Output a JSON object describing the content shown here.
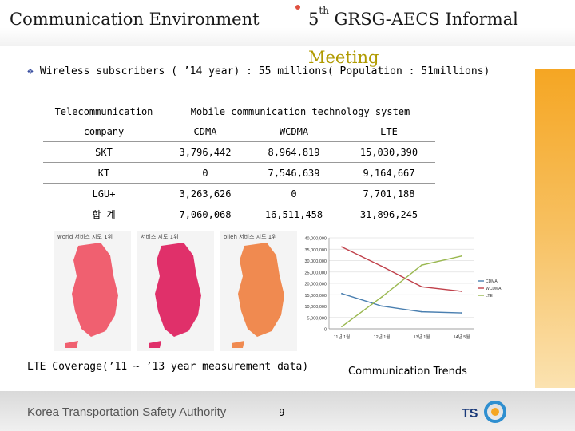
{
  "header": {
    "title_left": "Communication Environment",
    "title_right_prefix": "5",
    "title_right_sup": "th",
    "title_right_suffix": " GRSG-AECS Informal",
    "meeting": "Meeting"
  },
  "bullet": {
    "text": "Wireless subscribers ( ’14 year) :  55 millions( Population : 51millions)"
  },
  "table": {
    "col0_header_top": "Telecommunication",
    "col0_header_bottom": "company",
    "group_header": "Mobile communication technology system",
    "columns": [
      "CDMA",
      "WCDMA",
      "LTE"
    ],
    "rows": [
      {
        "company": "SKT",
        "cdma": "3,796,442",
        "wcdma": "8,964,819",
        "lte": "15,030,390"
      },
      {
        "company": "KT",
        "cdma": "0",
        "wcdma": "7,546,639",
        "lte": "9,164,667"
      },
      {
        "company": "LGU+",
        "cdma": "3,263,626",
        "wcdma": "0",
        "lte": "7,701,188"
      },
      {
        "company": "합 계",
        "cdma": "7,060,068",
        "wcdma": "16,511,458",
        "lte": "31,896,245"
      }
    ]
  },
  "maps": {
    "brands": [
      "world 서비스 지도 1위",
      "서비스 지도 1위",
      "olleh 서비스 지도 1위"
    ],
    "colors": [
      "#f06070",
      "#e0306a",
      "#f08a50"
    ]
  },
  "chart_data": {
    "type": "line",
    "x": [
      "11년 1월",
      "12년 1월",
      "13년 1월",
      "14년 5월"
    ],
    "yticks": [
      "40,000,000",
      "35,000,000",
      "30,000,000",
      "25,000,000",
      "20,000,000",
      "15,000,000",
      "10,000,000",
      "5,000,000",
      "0"
    ],
    "ylim": [
      0,
      40000000
    ],
    "series": [
      {
        "name": "CDMA",
        "color": "#4a7fb0",
        "values": [
          15500000,
          10000000,
          7500000,
          7000000
        ]
      },
      {
        "name": "WCDMA",
        "color": "#c0404a",
        "values": [
          36000000,
          27500000,
          18500000,
          16500000
        ]
      },
      {
        "name": "LTE",
        "color": "#9ab850",
        "values": [
          1000000,
          14000000,
          28000000,
          32000000
        ]
      }
    ],
    "legend_position": "right"
  },
  "captions": {
    "left": "LTE Coverage(’11 ~ ’13 year measurement data)",
    "right": "Communication Trends"
  },
  "footer": {
    "org": "Korea Transportation Safety Authority",
    "page": "-9-",
    "logo_text": "TS"
  }
}
